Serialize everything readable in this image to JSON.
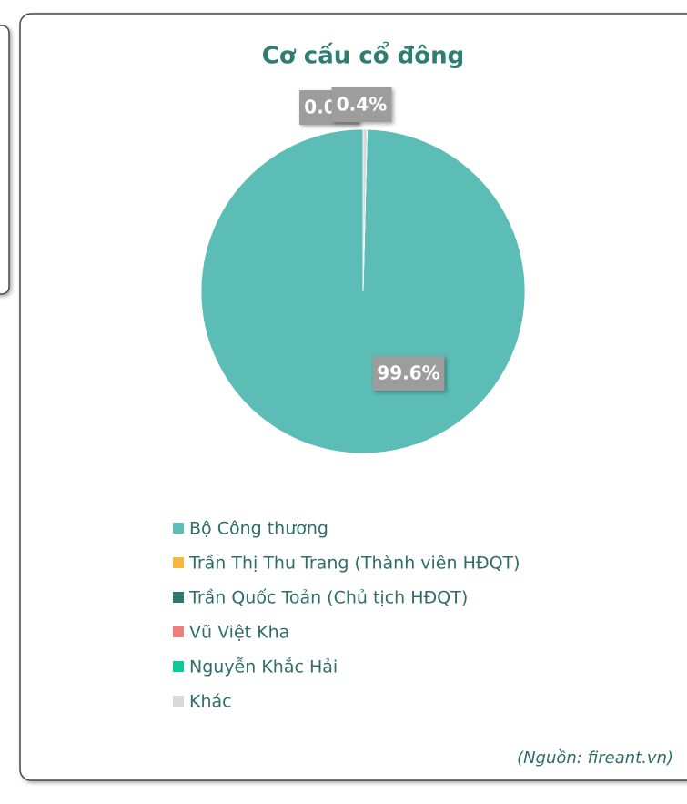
{
  "chart_data": {
    "type": "pie",
    "title": "Cơ cấu cổ đông",
    "categories": [
      "Bộ Công thương",
      "Trần Thị Thu Trang (Thành viên HĐQT)",
      "Trần Quốc Toản (Chủ tịch HĐQT)",
      "Vũ Việt Kha",
      "Nguyễn Khắc Hải",
      "Khác"
    ],
    "values": [
      99.6,
      0,
      0,
      0,
      0,
      0.4
    ],
    "value_labels": [
      "99.6%",
      null,
      "0.0%",
      null,
      null,
      "0.4%"
    ],
    "colors": [
      "#5bbdb6",
      "#f6b73c",
      "#2f7870",
      "#f17d7b",
      "#12c99b",
      "#d9d9d9"
    ],
    "legend": "bottom",
    "source": "(Nguồn: fireant.vn)"
  }
}
